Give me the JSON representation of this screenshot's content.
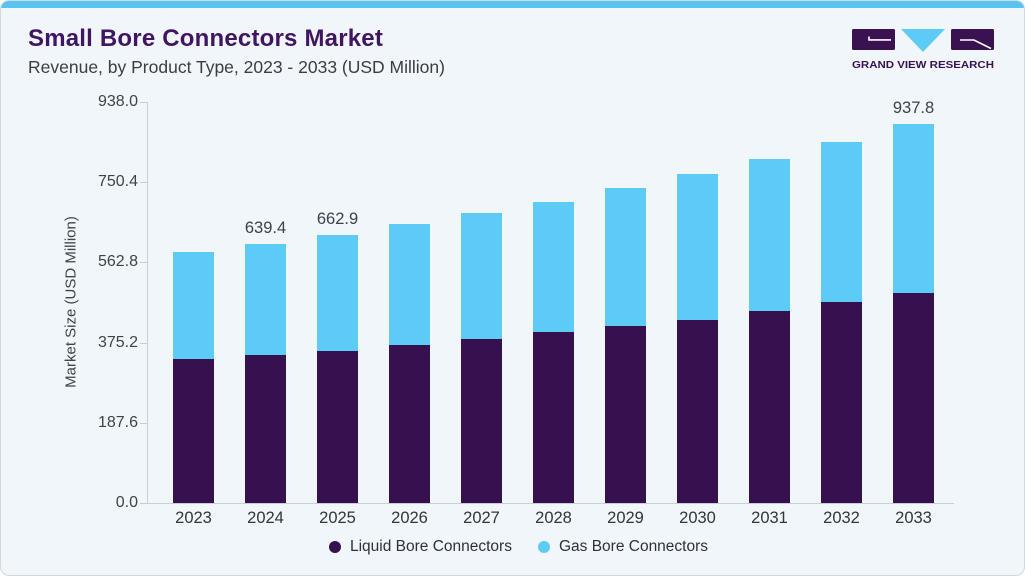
{
  "header": {
    "title": "Small Bore Connectors Market",
    "subtitle": "Revenue, by Product Type, 2023 - 2033 (USD Million)"
  },
  "logo": {
    "text": "GRAND VIEW RESEARCH"
  },
  "colors": {
    "accent": "#58c4ef",
    "brand_purple": "#401562",
    "bar_purple": "#351150",
    "bar_blue": "#5ccbf5",
    "card_bg": "#f0f6fa"
  },
  "chart_data": {
    "type": "bar",
    "stacked": true,
    "title": "Small Bore Connectors Market",
    "subtitle": "Revenue, by Product Type, 2023 - 2033 (USD Million)",
    "xlabel": "",
    "ylabel": "Market Size (USD Million)",
    "categories": [
      "2023",
      "2024",
      "2025",
      "2026",
      "2027",
      "2028",
      "2029",
      "2030",
      "2031",
      "2032",
      "2033"
    ],
    "series": [
      {
        "name": "Liquid Bore Connectors",
        "color": "#351150",
        "values": [
          357.1,
          366.0,
          376.7,
          391.4,
          406.1,
          421.6,
          437.0,
          452.7,
          474.8,
          495.8,
          520.3
        ]
      },
      {
        "name": "Gas Bore Connectors",
        "color": "#5ccbf5",
        "values": [
          263.7,
          273.4,
          286.2,
          297.3,
          310.3,
          323.5,
          341.7,
          360.3,
          375.0,
          397.2,
          417.5
        ]
      }
    ],
    "totals": [
      620.8,
      639.4,
      662.9,
      688.7,
      716.4,
      745.1,
      778.7,
      813.0,
      849.8,
      893.0,
      937.8
    ],
    "data_labels": [
      "",
      "639.4",
      "662.9",
      "",
      "",
      "",
      "",
      "",
      "",
      "",
      "937.8"
    ],
    "yticks": [
      "938.0",
      "750.4",
      "562.8",
      "375.2",
      "187.6",
      "0.0"
    ],
    "ylim": [
      0,
      938.0
    ],
    "grid": false,
    "legend_position": "bottom"
  }
}
